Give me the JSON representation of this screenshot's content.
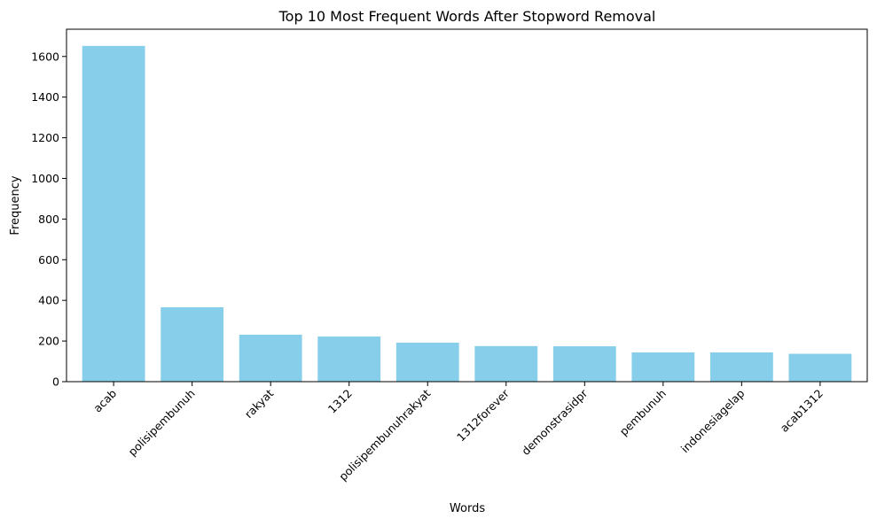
{
  "chart_data": {
    "type": "bar",
    "title": "Top 10 Most Frequent Words After Stopword Removal",
    "xlabel": "Words",
    "ylabel": "Frequency",
    "categories": [
      "acab",
      "polisipembunuh",
      "rakyat",
      "1312",
      "polisipembunuhrakyat",
      "1312forever",
      "demonstrasidpr",
      "pembunuh",
      "indonesiagelap",
      "acab1312"
    ],
    "values": [
      1652,
      366,
      231,
      222,
      192,
      175,
      174,
      144,
      144,
      137
    ],
    "ylim": [
      0,
      1734
    ],
    "yticks": [
      0,
      200,
      400,
      600,
      800,
      1000,
      1200,
      1400,
      1600
    ],
    "bar_color": "#87CEEB",
    "grid": false,
    "legend": "none",
    "xtick_rotation": -45
  }
}
